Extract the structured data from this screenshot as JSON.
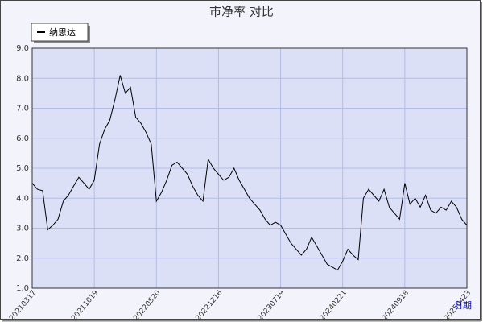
{
  "chart_data": {
    "type": "line",
    "title": "市净率  对比",
    "x_label": "日期",
    "categories": [
      "20210317",
      null,
      null,
      null,
      null,
      null,
      null,
      null,
      null,
      null,
      null,
      null,
      "20211019",
      null,
      null,
      null,
      null,
      null,
      null,
      null,
      null,
      null,
      null,
      null,
      "20220520",
      null,
      null,
      null,
      null,
      null,
      null,
      null,
      null,
      null,
      null,
      null,
      "20221216",
      null,
      null,
      null,
      null,
      null,
      null,
      null,
      null,
      null,
      null,
      null,
      "20230719",
      null,
      null,
      null,
      null,
      null,
      null,
      null,
      null,
      null,
      null,
      null,
      "20240221",
      null,
      null,
      null,
      null,
      null,
      null,
      null,
      null,
      null,
      null,
      null,
      "20240918",
      null,
      null,
      null,
      null,
      null,
      null,
      null,
      null,
      null,
      null,
      null,
      "20250423"
    ],
    "series": [
      {
        "name": "纳思达",
        "color": "#000000",
        "values": [
          4.5,
          4.3,
          4.25,
          2.95,
          3.1,
          3.3,
          3.9,
          4.1,
          4.4,
          4.7,
          4.5,
          4.3,
          4.6,
          5.8,
          6.3,
          6.6,
          7.3,
          8.1,
          7.5,
          7.7,
          6.7,
          6.5,
          6.2,
          5.8,
          3.9,
          4.2,
          4.6,
          5.1,
          5.2,
          5.0,
          4.8,
          4.4,
          4.1,
          3.9,
          5.3,
          5.0,
          4.8,
          4.6,
          4.7,
          5.0,
          4.6,
          4.3,
          4.0,
          3.8,
          3.6,
          3.3,
          3.1,
          3.2,
          3.1,
          2.8,
          2.5,
          2.3,
          2.1,
          2.3,
          2.7,
          2.4,
          2.1,
          1.8,
          1.7,
          1.6,
          1.9,
          2.3,
          2.1,
          1.95,
          4.0,
          4.3,
          4.1,
          3.9,
          4.3,
          3.7,
          3.5,
          3.3,
          4.5,
          3.8,
          4.0,
          3.7,
          4.1,
          3.6,
          3.5,
          3.7,
          3.6,
          3.9,
          3.7,
          3.3,
          3.1
        ]
      }
    ],
    "ylim": [
      1,
      9
    ],
    "yticks": [
      {
        "value": 1,
        "label": "1.0"
      },
      {
        "value": 2,
        "label": "2.0"
      },
      {
        "value": 3,
        "label": "3.0"
      },
      {
        "value": 4,
        "label": "4.0"
      },
      {
        "value": 5,
        "label": "5.0"
      },
      {
        "value": 6,
        "label": "6.0"
      },
      {
        "value": 7,
        "label": "7.0"
      },
      {
        "value": 8,
        "label": "8.0"
      },
      {
        "value": 9,
        "label": "9.0"
      }
    ],
    "grid": true,
    "legend": "top-left"
  }
}
